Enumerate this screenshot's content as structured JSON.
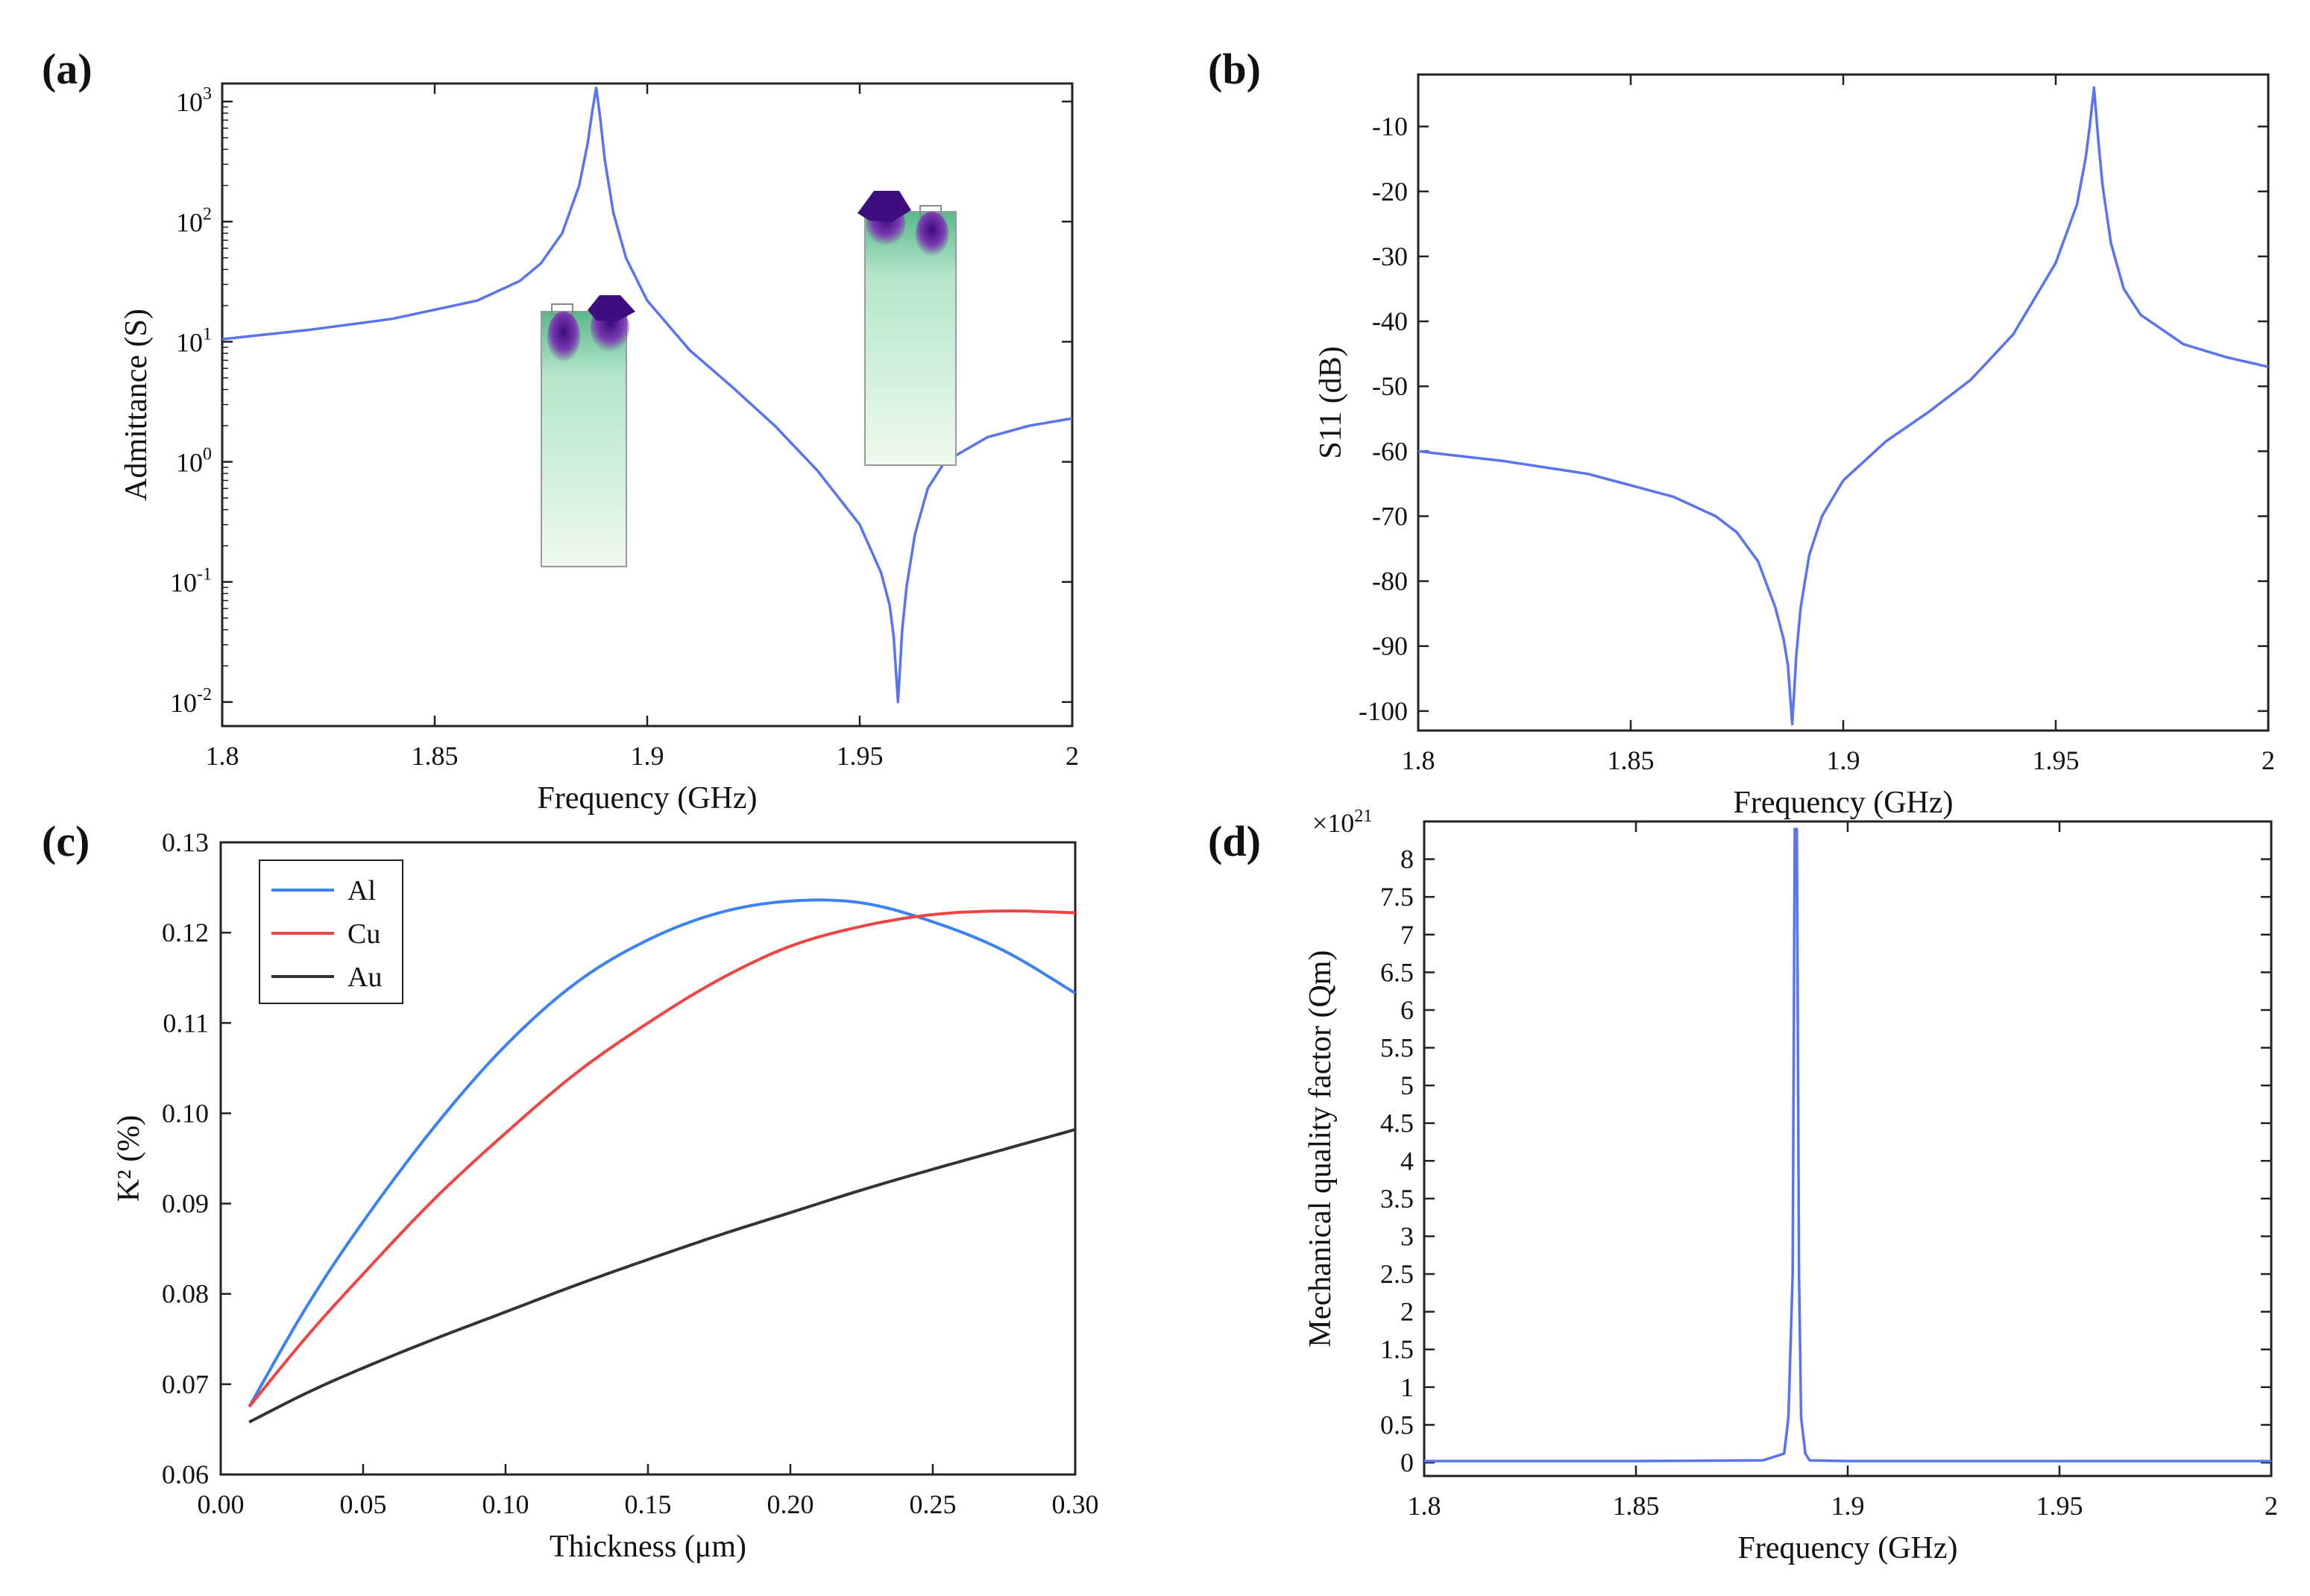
{
  "figure": {
    "panels": [
      {
        "id": "a",
        "label": "(a)"
      },
      {
        "id": "b",
        "label": "(b)"
      },
      {
        "id": "c",
        "label": "(c)"
      },
      {
        "id": "d",
        "label": "(d)"
      }
    ]
  },
  "colors": {
    "blue": "#5a73f0",
    "al": "#3b82f6",
    "cu": "#ef4444",
    "au": "#333333",
    "axis": "#222222",
    "inset_light": "#e6f7e6",
    "inset_green": "#6cc79a",
    "inset_purple": "#5b2a96"
  },
  "chart_data": [
    {
      "panel": "a",
      "type": "line",
      "title": "",
      "xlabel": "Frequency (GHz)",
      "ylabel": "Admittance (S)",
      "yscale": "log",
      "xlim": [
        1.8,
        2.0
      ],
      "ylim_log10": [
        -2.2,
        3.15
      ],
      "xticks": [
        1.8,
        1.85,
        1.9,
        1.95,
        2.0
      ],
      "xtick_labels": [
        "1.8",
        "1.85",
        "1.9",
        "1.95",
        "2"
      ],
      "yticks_exp": [
        -2,
        -1,
        0,
        1,
        2,
        3
      ],
      "ytick_base": "10",
      "resonance_ghz": 1.888,
      "antiresonance_ghz": 1.959,
      "x": [
        1.8,
        1.82,
        1.84,
        1.86,
        1.87,
        1.875,
        1.88,
        1.884,
        1.886,
        1.887,
        1.888,
        1.889,
        1.89,
        1.892,
        1.895,
        1.9,
        1.91,
        1.92,
        1.93,
        1.94,
        1.95,
        1.955,
        1.957,
        1.958,
        1.959,
        1.96,
        1.961,
        1.963,
        1.966,
        1.97,
        1.98,
        1.99,
        2.0
      ],
      "y": [
        10.5,
        12.5,
        15.5,
        22,
        32,
        45,
        80,
        200,
        450,
        800,
        1300,
        700,
        330,
        120,
        50,
        22,
        8.5,
        4.2,
        2.0,
        0.85,
        0.3,
        0.12,
        0.065,
        0.035,
        0.01,
        0.04,
        0.09,
        0.25,
        0.6,
        1.0,
        1.6,
        2.0,
        2.3
      ],
      "series": [
        {
          "name": "Admittance",
          "color": "#5a73f0"
        }
      ]
    },
    {
      "panel": "b",
      "type": "line",
      "title": "",
      "xlabel": "Frequency (GHz)",
      "ylabel": "S11 (dB)",
      "xlim": [
        1.8,
        2.0
      ],
      "ylim": [
        -103,
        -2
      ],
      "xticks": [
        1.8,
        1.85,
        1.9,
        1.95,
        2.0
      ],
      "xtick_labels": [
        "1.8",
        "1.85",
        "1.9",
        "1.95",
        "2"
      ],
      "yticks": [
        -100,
        -90,
        -80,
        -70,
        -60,
        -50,
        -40,
        -30,
        -20,
        -10
      ],
      "x": [
        1.8,
        1.82,
        1.84,
        1.86,
        1.87,
        1.875,
        1.88,
        1.884,
        1.886,
        1.887,
        1.888,
        1.889,
        1.89,
        1.892,
        1.895,
        1.9,
        1.91,
        1.92,
        1.93,
        1.94,
        1.95,
        1.955,
        1.957,
        1.958,
        1.959,
        1.96,
        1.961,
        1.963,
        1.966,
        1.97,
        1.98,
        1.99,
        2.0
      ],
      "y": [
        -60,
        -61.5,
        -63.5,
        -67,
        -70,
        -72.5,
        -77,
        -84,
        -89,
        -93,
        -102,
        -91,
        -84,
        -76,
        -70,
        -64.5,
        -58.5,
        -54,
        -49,
        -42,
        -31,
        -22,
        -15,
        -10,
        -4,
        -12,
        -19,
        -28,
        -35,
        -39,
        -43.5,
        -45.5,
        -47
      ],
      "series": [
        {
          "name": "S11",
          "color": "#5a73f0"
        }
      ]
    },
    {
      "panel": "c",
      "type": "line",
      "title": "",
      "xlabel": "Thickness (μm)",
      "ylabel": "K² (%)",
      "xlim": [
        0.0,
        0.3
      ],
      "ylim": [
        0.06,
        0.13
      ],
      "xticks": [
        0.0,
        0.05,
        0.1,
        0.15,
        0.2,
        0.25,
        0.3
      ],
      "xtick_labels": [
        "0.00",
        "0.05",
        "0.10",
        "0.15",
        "0.20",
        "0.25",
        "0.30"
      ],
      "yticks": [
        0.06,
        0.07,
        0.08,
        0.09,
        0.1,
        0.11,
        0.12,
        0.13
      ],
      "ytick_labels": [
        "0.06",
        "0.07",
        "0.08",
        "0.09",
        "0.10",
        "0.11",
        "0.12",
        "0.13"
      ],
      "legend_position": "top-left",
      "x": [
        0.01,
        0.03,
        0.05,
        0.075,
        0.1,
        0.125,
        0.15,
        0.175,
        0.2,
        0.225,
        0.25,
        0.275,
        0.3
      ],
      "series": [
        {
          "name": "Al",
          "color": "#3b82f6",
          "values": [
            0.0675,
            0.0785,
            0.088,
            0.0985,
            0.1075,
            0.1145,
            0.1192,
            0.1222,
            0.1235,
            0.1233,
            0.1212,
            0.118,
            0.1133
          ]
        },
        {
          "name": "Cu",
          "color": "#ef4444",
          "values": [
            0.0675,
            0.0752,
            0.0822,
            0.0905,
            0.0978,
            0.1045,
            0.11,
            0.1148,
            0.1185,
            0.1207,
            0.122,
            0.1224,
            0.1222
          ]
        },
        {
          "name": "Au",
          "color": "#333333",
          "values": [
            0.0658,
            0.069,
            0.0718,
            0.075,
            0.078,
            0.081,
            0.0838,
            0.0865,
            0.089,
            0.0915,
            0.0938,
            0.096,
            0.0982
          ]
        }
      ]
    },
    {
      "panel": "d",
      "type": "line",
      "title": "",
      "xlabel": "Frequency (GHz)",
      "ylabel": "Mechanical quality factor (Qm)",
      "multiplier_label": "×10",
      "multiplier_exp": "21",
      "xlim": [
        1.8,
        2.0
      ],
      "ylim": [
        0,
        8.5
      ],
      "xticks": [
        1.8,
        1.85,
        1.9,
        1.95,
        2.0
      ],
      "xtick_labels": [
        "1.8",
        "1.85",
        "1.9",
        "1.95",
        "2"
      ],
      "yticks": [
        0,
        0.5,
        1,
        1.5,
        2,
        2.5,
        3,
        3.5,
        4,
        4.5,
        5,
        5.5,
        6,
        6.5,
        7,
        7.5,
        8
      ],
      "x": [
        1.8,
        1.85,
        1.88,
        1.885,
        1.886,
        1.887,
        1.8875,
        1.888,
        1.8885,
        1.889,
        1.89,
        1.891,
        1.9,
        1.95,
        2.0
      ],
      "y": [
        0.02,
        0.02,
        0.03,
        0.12,
        0.6,
        2.5,
        8.4,
        8.4,
        2.5,
        0.6,
        0.12,
        0.03,
        0.02,
        0.02,
        0.02
      ],
      "series": [
        {
          "name": "Qm",
          "color": "#5a73f0"
        }
      ]
    }
  ]
}
